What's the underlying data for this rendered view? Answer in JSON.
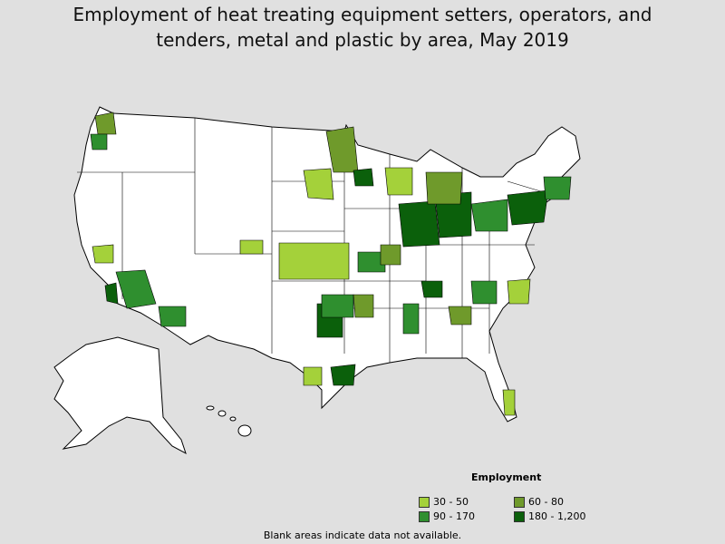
{
  "title": "Employment of heat treating equipment setters, operators, and tenders, metal and plastic by area, May 2019",
  "legend": {
    "title": "Employment",
    "items": [
      {
        "label": "30 - 50",
        "color": "#a4d13a"
      },
      {
        "label": "60 - 80",
        "color": "#6f9a2b"
      },
      {
        "label": "90 - 170",
        "color": "#2f8f2f"
      },
      {
        "label": "180 - 1,200",
        "color": "#0b600b"
      }
    ]
  },
  "note": "Blank areas indicate data not available."
}
